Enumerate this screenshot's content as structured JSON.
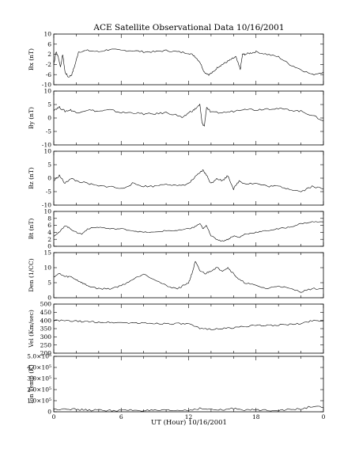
{
  "chart_data": {
    "type": "line",
    "title": "ACE Satellite Observational Data   10/16/2001",
    "xlabel": "UT (Hour)   10/16/2001",
    "x_tick_labels": [
      "0",
      "6",
      "12",
      "18",
      "0"
    ],
    "xlim": [
      0,
      24
    ],
    "panels": [
      {
        "ylabel": "Bx (nT)",
        "ylim": [
          -10,
          10
        ],
        "yticks": [
          "10",
          "6",
          "2",
          "-2",
          "-6",
          "-10"
        ],
        "series": [
          {
            "x": [
              0,
              0.2,
              0.4,
              0.6,
              0.8,
              1.0,
              1.3,
              1.6,
              1.9,
              2.2,
              3,
              4,
              5,
              6,
              7,
              8,
              9,
              10,
              11,
              12,
              12.5,
              13,
              13.4,
              13.8,
              14.2,
              14.6,
              15,
              15.4,
              15.8,
              16.2,
              16.6,
              16.8,
              17,
              17.5,
              18,
              19,
              20,
              21,
              22,
              23,
              24
            ],
            "y": [
              -2,
              3,
              1,
              -3,
              2,
              -5,
              -7,
              -6,
              -2,
              3,
              3.5,
              3,
              4,
              3.5,
              3.5,
              3,
              3,
              3.5,
              3,
              2.5,
              1.5,
              -1,
              -5,
              -6,
              -5,
              -3,
              -2,
              -1,
              0,
              1,
              -4,
              2,
              2,
              2.5,
              3,
              2,
              1,
              -2,
              -4,
              -6,
              -5
            ]
          }
        ]
      },
      {
        "ylabel": "By (nT)",
        "ylim": [
          -10,
          10
        ],
        "yticks": [
          "10",
          "5",
          "0",
          "-5",
          "-10"
        ],
        "series": [
          {
            "x": [
              0,
              0.5,
              1,
              1.5,
              2,
              3,
              4,
              5,
              6,
              7,
              8,
              9,
              10,
              11,
              11.5,
              12,
              12.5,
              13,
              13.2,
              13.4,
              13.6,
              14,
              15,
              16,
              17,
              18,
              19,
              20,
              21,
              22,
              23,
              24
            ],
            "y": [
              3,
              4,
              2.5,
              3,
              2,
              3,
              2.5,
              3,
              2,
              2,
              1.5,
              1.5,
              2,
              1,
              0,
              2,
              3,
              5,
              -2,
              -3,
              4,
              2,
              2,
              2.5,
              3.5,
              3,
              3.5,
              3.5,
              3,
              2.5,
              1,
              -1
            ]
          }
        ]
      },
      {
        "ylabel": "Bz (nT)",
        "ylim": [
          -10,
          10
        ],
        "yticks": [
          "10",
          "5",
          "0",
          "-5",
          "-10"
        ],
        "series": [
          {
            "x": [
              0,
              0.5,
              1,
              1.5,
              2,
              3,
              4,
              5,
              6,
              7,
              8,
              9,
              10,
              11,
              12,
              12.5,
              13,
              13.3,
              13.6,
              14,
              14.5,
              15,
              15.5,
              16,
              16.5,
              17,
              18,
              19,
              20,
              21,
              22,
              23,
              24
            ],
            "y": [
              -1,
              1,
              -2,
              0,
              -1,
              -2,
              -3,
              -3,
              -4,
              -2,
              -3,
              -3,
              -2,
              -3,
              -2,
              0,
              2,
              3,
              1,
              -2,
              0,
              -1,
              1,
              -4,
              -1,
              -2,
              -2,
              -3,
              -3,
              -4,
              -5,
              -3,
              -4
            ]
          }
        ]
      },
      {
        "ylabel": "Bt (nT)",
        "ylim": [
          0,
          10
        ],
        "yticks": [
          "10",
          "8",
          "6",
          "4",
          "2",
          "0"
        ],
        "series": [
          {
            "x": [
              0,
              0.5,
              1,
              1.5,
              2,
              2.5,
              3,
              4,
              5,
              6,
              7,
              8,
              9,
              10,
              11,
              12,
              12.5,
              13,
              13.3,
              13.6,
              14,
              14.5,
              15,
              15.5,
              16,
              16.5,
              17,
              18,
              19,
              20,
              21,
              22,
              23,
              24
            ],
            "y": [
              3,
              4,
              6,
              5,
              4,
              3.5,
              5,
              5.5,
              5,
              5,
              4.5,
              4,
              4,
              4.5,
              4.5,
              5,
              5.5,
              6.5,
              5,
              6,
              3,
              2,
              1.5,
              2,
              3,
              2.5,
              3.5,
              4,
              4.5,
              5,
              5.5,
              6.5,
              7,
              7
            ]
          }
        ]
      },
      {
        "ylabel": "Den (1/CC)",
        "ylim": [
          0,
          15
        ],
        "yticks": [
          "15",
          "10",
          "5",
          "0"
        ],
        "series": [
          {
            "x": [
              0,
              0.5,
              1,
              1.5,
              2,
              2.5,
              3,
              4,
              5,
              6,
              7,
              8,
              9,
              10,
              11,
              11.5,
              12,
              12.3,
              12.6,
              13,
              13.5,
              14,
              14.5,
              15,
              15.5,
              16,
              16.5,
              17,
              18,
              19,
              20,
              21,
              22,
              23,
              24
            ],
            "y": [
              7,
              8,
              7,
              7,
              6,
              5,
              4,
              3,
              3,
              4,
              6,
              8,
              6,
              4,
              3,
              4,
              5,
              8,
              12,
              9,
              8,
              9,
              10,
              9,
              10,
              8,
              6,
              5,
              4,
              3,
              4,
              3,
              2,
              3,
              3
            ]
          }
        ]
      },
      {
        "ylabel": "Vel (Km/sec)",
        "ylim": [
          200,
          500
        ],
        "yticks": [
          "500",
          "450",
          "400",
          "350",
          "300",
          "250",
          "200"
        ],
        "series": [
          {
            "x": [
              0,
              1,
              2,
              3,
              4,
              5,
              6,
              7,
              8,
              9,
              10,
              11,
              12,
              13,
              14,
              15,
              16,
              17,
              18,
              19,
              20,
              21,
              22,
              23,
              24
            ],
            "y": [
              400,
              398,
              395,
              392,
              390,
              388,
              387,
              385,
              383,
              382,
              381,
              380,
              378,
              350,
              348,
              350,
              355,
              365,
              368,
              370,
              372,
              375,
              380,
              400,
              398
            ]
          }
        ]
      },
      {
        "ylabel": "Ion Temp (K)",
        "ylim": [
          0,
          500000
        ],
        "yticks": [
          "5.0×10⁵",
          "4.0×10⁵",
          "3.0×10⁵",
          "2.0×10⁵",
          "1.0×10⁵",
          "0"
        ],
        "series": [
          {
            "x": [
              0,
              1,
              2,
              3,
              4,
              5,
              6,
              7,
              8,
              9,
              10,
              11,
              12,
              13,
              14,
              15,
              16,
              17,
              18,
              19,
              20,
              21,
              22,
              23,
              24
            ],
            "y": [
              20000,
              30000,
              20000,
              15000,
              15000,
              12000,
              12000,
              15000,
              12000,
              10000,
              12000,
              12000,
              15000,
              30000,
              20000,
              15000,
              30000,
              20000,
              15000,
              15000,
              15000,
              20000,
              25000,
              50000,
              40000
            ]
          }
        ]
      }
    ]
  }
}
